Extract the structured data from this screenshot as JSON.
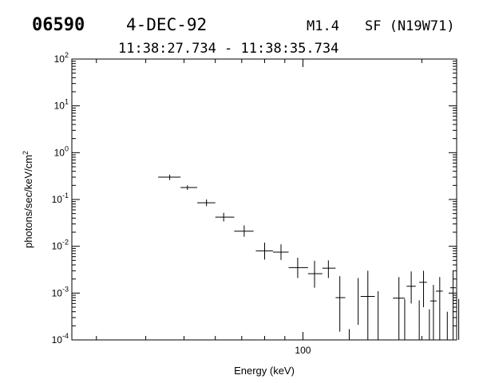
{
  "header": {
    "event_id": "06590",
    "date": "4-DEC-92",
    "flare_class": "M1.4",
    "flare_location": "SF (N19W71)",
    "time_range": "11:38:27.734 - 11:38:35.734"
  },
  "chart_data": {
    "type": "scatter",
    "title": "",
    "xlabel": "Energy (keV)",
    "ylabel": "photons/sec/keV/cm",
    "ylabel_superscript": "2",
    "x_scale": "log",
    "y_scale": "log",
    "xlim": [
      26,
      245
    ],
    "ylim": [
      0.0001,
      100
    ],
    "x_tick_labels": [
      "100"
    ],
    "y_tick_labels": [
      {
        "base": "10",
        "exp": "2"
      },
      {
        "base": "10",
        "exp": "1"
      },
      {
        "base": "10",
        "exp": "0"
      },
      {
        "base": "10",
        "exp": "-1"
      },
      {
        "base": "10",
        "exp": "-2"
      },
      {
        "base": "10",
        "exp": "-3"
      },
      {
        "base": "10",
        "exp": "-4"
      }
    ],
    "grid": false,
    "marker": "errorbar-cross",
    "series": [
      {
        "points": [
          {
            "x": 46,
            "x_lo": 43,
            "x_hi": 49,
            "y": 0.3,
            "y_lo": 0.26,
            "y_hi": 0.34
          },
          {
            "x": 51,
            "x_lo": 49,
            "x_hi": 54,
            "y": 0.18,
            "y_lo": 0.16,
            "y_hi": 0.2
          },
          {
            "x": 57,
            "x_lo": 54,
            "x_hi": 60,
            "y": 0.085,
            "y_lo": 0.072,
            "y_hi": 0.1
          },
          {
            "x": 63,
            "x_lo": 60,
            "x_hi": 67,
            "y": 0.042,
            "y_lo": 0.034,
            "y_hi": 0.052
          },
          {
            "x": 71,
            "x_lo": 67,
            "x_hi": 75,
            "y": 0.021,
            "y_lo": 0.016,
            "y_hi": 0.028
          },
          {
            "x": 80,
            "x_lo": 76,
            "x_hi": 84,
            "y": 0.008,
            "y_lo": 0.0052,
            "y_hi": 0.012
          },
          {
            "x": 88,
            "x_lo": 84,
            "x_hi": 92,
            "y": 0.0075,
            "y_lo": 0.0051,
            "y_hi": 0.011
          },
          {
            "x": 97,
            "x_lo": 92,
            "x_hi": 103,
            "y": 0.0035,
            "y_lo": 0.0021,
            "y_hi": 0.0057
          },
          {
            "x": 107,
            "x_lo": 103,
            "x_hi": 112,
            "y": 0.0026,
            "y_lo": 0.0013,
            "y_hi": 0.0049
          },
          {
            "x": 116,
            "x_lo": 112,
            "x_hi": 121,
            "y": 0.0034,
            "y_lo": 0.0021,
            "y_hi": 0.005
          },
          {
            "x": 124,
            "x_lo": 121,
            "x_hi": 128,
            "y": 0.0008,
            "y_lo": 0.00015,
            "y_hi": 0.0023
          },
          {
            "x": 131,
            "x_lo": 131,
            "x_hi": 131,
            "y": null,
            "y_lo": 0.0001,
            "y_hi": 0.00017
          },
          {
            "x": 138,
            "x_lo": 138,
            "x_hi": 138,
            "y": null,
            "y_lo": 0.00021,
            "y_hi": 0.0021
          },
          {
            "x": 146,
            "x_lo": 140,
            "x_hi": 152,
            "y": 0.00085,
            "y_lo": 0.0001,
            "y_hi": 0.003
          },
          {
            "x": 155,
            "x_lo": 155,
            "x_hi": 155,
            "y": null,
            "y_lo": 0.0001,
            "y_hi": 0.0011
          },
          {
            "x": 175,
            "x_lo": 169,
            "x_hi": 181,
            "y": 0.00078,
            "y_lo": 0.0001,
            "y_hi": 0.0022
          },
          {
            "x": 181,
            "x_lo": 181,
            "x_hi": 181,
            "y": null,
            "y_lo": 0.0001,
            "y_hi": 0.00075
          },
          {
            "x": 188,
            "x_lo": 183,
            "x_hi": 193,
            "y": 0.0014,
            "y_lo": 0.0006,
            "y_hi": 0.0029
          },
          {
            "x": 197,
            "x_lo": 197,
            "x_hi": 197,
            "y": null,
            "y_lo": 0.0001,
            "y_hi": 0.0007
          },
          {
            "x": 202,
            "x_lo": 197,
            "x_hi": 206,
            "y": 0.0017,
            "y_lo": 0.0005,
            "y_hi": 0.003
          },
          {
            "x": 209,
            "x_lo": 209,
            "x_hi": 209,
            "y": null,
            "y_lo": 0.0001,
            "y_hi": 0.00045
          },
          {
            "x": 214,
            "x_lo": 210,
            "x_hi": 218,
            "y": 0.00068,
            "y_lo": 0.0001,
            "y_hi": 0.0015
          },
          {
            "x": 222,
            "x_lo": 217,
            "x_hi": 226,
            "y": 0.0011,
            "y_lo": 0.0001,
            "y_hi": 0.0022
          },
          {
            "x": 232,
            "x_lo": 232,
            "x_hi": 232,
            "y": null,
            "y_lo": 0.0001,
            "y_hi": 0.0004
          },
          {
            "x": 240,
            "x_lo": 236,
            "x_hi": 244,
            "y": 0.0013,
            "y_lo": 0.0001,
            "y_hi": 0.003
          },
          {
            "x": 248,
            "x_lo": 248,
            "x_hi": 248,
            "y": null,
            "y_lo": 0.0001,
            "y_hi": 0.00075
          }
        ]
      }
    ]
  }
}
